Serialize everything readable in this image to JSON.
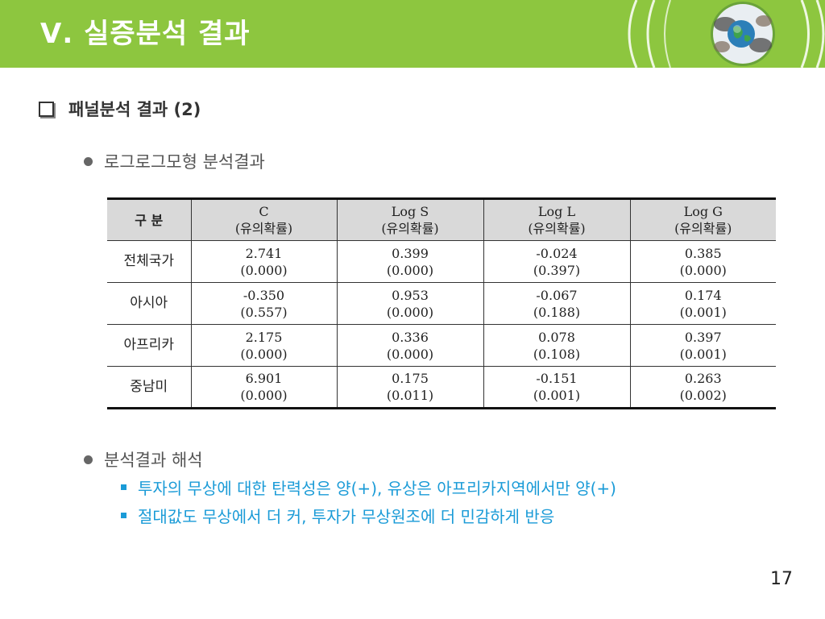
{
  "header": {
    "title": "Ⅴ. 실증분석 결과",
    "bg_color": "#8dc63f",
    "logo_icon": "globe-hands-icon"
  },
  "section": {
    "title": "패널분석 결과 (2)"
  },
  "bullet1": {
    "text": "로그로그모형 분석결과"
  },
  "table": {
    "headers": [
      {
        "l1": "구 분",
        "l2": ""
      },
      {
        "l1": "C",
        "l2": "(유의확률)"
      },
      {
        "l1": "Log S",
        "l2": "(유의확률)"
      },
      {
        "l1": "Log L",
        "l2": "(유의확률)"
      },
      {
        "l1": "Log G",
        "l2": "(유의확률)"
      }
    ],
    "rows": [
      {
        "label": "전체국가",
        "cells": [
          {
            "v": "2.741",
            "p": "(0.000)"
          },
          {
            "v": "0.399",
            "p": "(0.000)"
          },
          {
            "v": "-0.024",
            "p": "(0.397)"
          },
          {
            "v": "0.385",
            "p": "(0.000)"
          }
        ]
      },
      {
        "label": "아시아",
        "cells": [
          {
            "v": "-0.350",
            "p": "(0.557)"
          },
          {
            "v": "0.953",
            "p": "(0.000)"
          },
          {
            "v": "-0.067",
            "p": "(0.188)"
          },
          {
            "v": "0.174",
            "p": "(0.001)"
          }
        ]
      },
      {
        "label": "아프리카",
        "cells": [
          {
            "v": "2.175",
            "p": "(0.000)"
          },
          {
            "v": "0.336",
            "p": "(0.000)"
          },
          {
            "v": "0.078",
            "p": "(0.108)"
          },
          {
            "v": "0.397",
            "p": "(0.001)"
          }
        ]
      },
      {
        "label": "중남미",
        "cells": [
          {
            "v": "6.901",
            "p": "(0.000)"
          },
          {
            "v": "0.175",
            "p": "(0.011)"
          },
          {
            "v": "-0.151",
            "p": "(0.001)"
          },
          {
            "v": "0.263",
            "p": "(0.002)"
          }
        ]
      }
    ]
  },
  "bullet2": {
    "text": "분석결과 해석"
  },
  "interpretation": [
    "투자의 무상에 대한 탄력성은 양(+), 유상은 아프리카지역에서만 양(+)",
    "절대값도 무상에서 더 커, 투자가 무상원조에 더 민감하게 반응"
  ],
  "accent_blue": "#1a9bd7",
  "page_number": "17"
}
